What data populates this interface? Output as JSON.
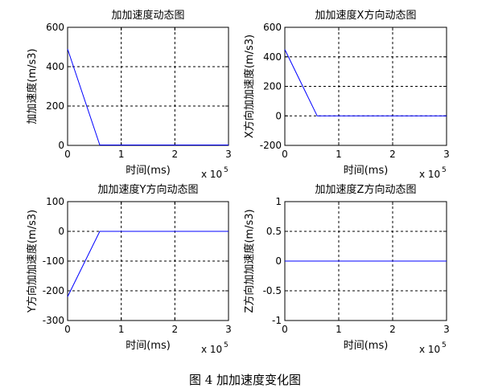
{
  "caption": "图 4 加加速度变化图",
  "line_color": "#0000ff",
  "chart_data": [
    {
      "type": "line",
      "title": "加加速度动态图",
      "xlabel": "时间(ms)",
      "ylabel": "加加速度(m/s3)",
      "x_exponent": "5",
      "xlim": [
        0,
        3
      ],
      "ylim": [
        0,
        600
      ],
      "xticks": [
        0,
        1,
        2,
        3
      ],
      "yticks": [
        0,
        200,
        400,
        600
      ],
      "xtick_labels": [
        "0",
        "1",
        "2",
        "3"
      ],
      "ytick_labels": [
        "0",
        "200",
        "400",
        "600"
      ],
      "grid": true,
      "series": [
        {
          "x": [
            0,
            0.6,
            3
          ],
          "y": [
            490,
            2,
            2
          ]
        }
      ]
    },
    {
      "type": "line",
      "title": "加加速度X方向动态图",
      "xlabel": "时间(ms)",
      "ylabel": "X方向加加速度(m/s3)",
      "x_exponent": "5",
      "xlim": [
        0,
        3
      ],
      "ylim": [
        -200,
        600
      ],
      "xticks": [
        0,
        1,
        2,
        3
      ],
      "yticks": [
        -200,
        0,
        200,
        400,
        600
      ],
      "xtick_labels": [
        "0",
        "1",
        "2",
        "3"
      ],
      "ytick_labels": [
        "-200",
        "0",
        "200",
        "400",
        "600"
      ],
      "grid": true,
      "series": [
        {
          "x": [
            0,
            0.6,
            3
          ],
          "y": [
            450,
            0,
            0
          ]
        }
      ]
    },
    {
      "type": "line",
      "title": "加加速度Y方向动态图",
      "xlabel": "时间(ms)",
      "ylabel": "Y方向加加速度(m/s3)",
      "x_exponent": "5",
      "xlim": [
        0,
        3
      ],
      "ylim": [
        -300,
        100
      ],
      "xticks": [
        0,
        1,
        2,
        3
      ],
      "yticks": [
        -300,
        -200,
        -100,
        0,
        100
      ],
      "xtick_labels": [
        "0",
        "1",
        "2",
        "3"
      ],
      "ytick_labels": [
        "-300",
        "-200",
        "-100",
        "0",
        "100"
      ],
      "grid": true,
      "series": [
        {
          "x": [
            0,
            0.6,
            3
          ],
          "y": [
            -220,
            0,
            0
          ]
        }
      ]
    },
    {
      "type": "line",
      "title": "加加速度Z方向动态图",
      "xlabel": "时间(ms)",
      "ylabel": "Z方向加加速度(m/s3)",
      "x_exponent": "5",
      "xlim": [
        0,
        3
      ],
      "ylim": [
        -1,
        1
      ],
      "xticks": [
        0,
        1,
        2,
        3
      ],
      "yticks": [
        -1,
        -0.5,
        0,
        0.5,
        1
      ],
      "xtick_labels": [
        "0",
        "1",
        "2",
        "3"
      ],
      "ytick_labels": [
        "-1",
        "-0.5",
        "0",
        "0.5",
        "1"
      ],
      "grid": true,
      "series": [
        {
          "x": [
            0,
            3
          ],
          "y": [
            0,
            0
          ]
        }
      ]
    }
  ]
}
